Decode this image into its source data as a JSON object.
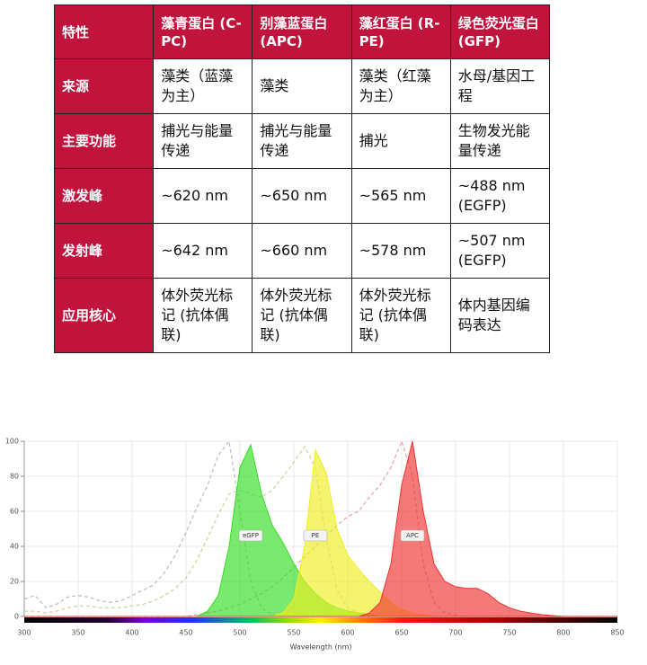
{
  "table": {
    "header": [
      "特性",
      "藻青蛋白 (C-PC)",
      "别藻蓝蛋白 (APC)",
      "藻红蛋白 (R-PE)",
      "绿色荧光蛋白 (GFP)"
    ],
    "rows": [
      [
        "来源",
        "藻类（蓝藻为主）",
        "藻类",
        "藻类（红藻为主）",
        "水母/基因工程"
      ],
      [
        "主要功能",
        "捕光与能量传递",
        "捕光与能量传递",
        "捕光",
        "生物发光能量传递"
      ],
      [
        "激发峰",
        "~620 nm",
        "~650 nm",
        "~565 nm",
        "~488 nm (EGFP)"
      ],
      [
        "发射峰",
        "~642 nm",
        "~660 nm",
        "~578 nm",
        "~507 nm (EGFP)"
      ],
      [
        "应用核心",
        "体外荧光标记 (抗体偶联)",
        "体外荧光标记 (抗体偶联)",
        "体外荧光标记 (抗体偶联)",
        "体内基因编码表达"
      ]
    ]
  },
  "chart_data": {
    "type": "area",
    "x_label": "Wavelength (nm)",
    "xlim": [
      300,
      850
    ],
    "ylim": [
      0,
      100
    ],
    "xticks": [
      300,
      350,
      400,
      450,
      500,
      550,
      600,
      650,
      700,
      750,
      800,
      850
    ],
    "yticks": [
      0,
      20,
      40,
      60,
      80,
      100
    ],
    "grid": true,
    "x": [
      300,
      310,
      320,
      330,
      340,
      350,
      360,
      370,
      380,
      390,
      400,
      410,
      420,
      430,
      440,
      450,
      460,
      470,
      480,
      490,
      500,
      510,
      520,
      530,
      540,
      550,
      560,
      570,
      580,
      590,
      600,
      610,
      620,
      630,
      640,
      650,
      660,
      670,
      680,
      690,
      700,
      710,
      720,
      730,
      740,
      750,
      760,
      770,
      780,
      790,
      800,
      810,
      820,
      830,
      840,
      850
    ],
    "series": [
      {
        "name": "eGFP",
        "color": "#33dd22",
        "style": "filled",
        "values": [
          0,
          0,
          0,
          0,
          0,
          0,
          0,
          0,
          0,
          0,
          0,
          0,
          0,
          0,
          0,
          0,
          0,
          3,
          12,
          40,
          85,
          98,
          70,
          52,
          42,
          30,
          20,
          13,
          8,
          5,
          3,
          2,
          1,
          0,
          0,
          0,
          0,
          0,
          0,
          0,
          0,
          0,
          0,
          0,
          0,
          0,
          0,
          0,
          0,
          0,
          0,
          0,
          0,
          0,
          0,
          0
        ]
      },
      {
        "name": "PE",
        "color": "#eeee22",
        "style": "filled",
        "values": [
          0,
          0,
          0,
          0,
          0,
          0,
          0,
          0,
          0,
          0,
          0,
          0,
          0,
          0,
          0,
          0,
          0,
          0,
          0,
          0,
          0,
          0,
          0,
          0,
          2,
          10,
          40,
          95,
          82,
          50,
          35,
          27,
          20,
          14,
          8,
          4,
          2,
          1,
          0,
          0,
          0,
          0,
          0,
          0,
          0,
          0,
          0,
          0,
          0,
          0,
          0,
          0,
          0,
          0,
          0,
          0
        ]
      },
      {
        "name": "APC",
        "color": "#ee3333",
        "style": "filled",
        "values": [
          0,
          0,
          0,
          0,
          0,
          0,
          0,
          0,
          0,
          0,
          0,
          0,
          0,
          0,
          0,
          0,
          0,
          0,
          0,
          0,
          0,
          0,
          0,
          0,
          0,
          0,
          0,
          0,
          0,
          0,
          0,
          0,
          2,
          8,
          30,
          75,
          100,
          60,
          30,
          20,
          17,
          16,
          16,
          13,
          8,
          5,
          3,
          2,
          1,
          0.5,
          0,
          0,
          0,
          0,
          0,
          0
        ]
      },
      {
        "color": "#bbbbbb",
        "style": "dashed",
        "values": [
          10,
          12,
          5,
          7,
          11,
          12,
          11,
          9,
          8,
          9,
          12,
          15,
          18,
          25,
          35,
          48,
          62,
          75,
          92,
          100,
          60,
          20,
          5,
          1,
          0,
          0,
          0,
          0,
          0,
          0,
          0,
          0,
          0,
          0,
          0,
          0,
          0,
          0,
          0,
          0,
          0,
          0,
          0,
          0,
          0,
          0,
          0,
          0,
          0,
          0,
          0,
          0,
          0,
          0,
          0,
          0
        ]
      },
      {
        "color": "#cfcf9a",
        "style": "dashed",
        "values": [
          3,
          3,
          2,
          3,
          5,
          6,
          6,
          5,
          5,
          5,
          6,
          7,
          9,
          12,
          16,
          22,
          32,
          45,
          58,
          70,
          72,
          70,
          68,
          72,
          80,
          88,
          97,
          85,
          45,
          15,
          5,
          2,
          1,
          0,
          0,
          0,
          0,
          0,
          0,
          0,
          0,
          0,
          0,
          0,
          0,
          0,
          0,
          0,
          0,
          0,
          0,
          0,
          0,
          0,
          0,
          0
        ]
      },
      {
        "color": "#e0a0a0",
        "style": "dashed",
        "values": [
          0,
          0,
          0,
          0,
          0,
          0,
          0,
          0,
          0,
          0,
          0,
          0,
          0,
          0,
          0,
          0,
          1,
          2,
          3,
          5,
          7,
          10,
          13,
          17,
          22,
          28,
          34,
          40,
          46,
          52,
          57,
          60,
          68,
          75,
          85,
          100,
          80,
          30,
          8,
          2,
          0.5,
          0,
          0,
          0,
          0,
          0,
          0,
          0,
          0,
          0,
          0,
          0,
          0,
          0,
          0,
          0
        ]
      }
    ]
  }
}
